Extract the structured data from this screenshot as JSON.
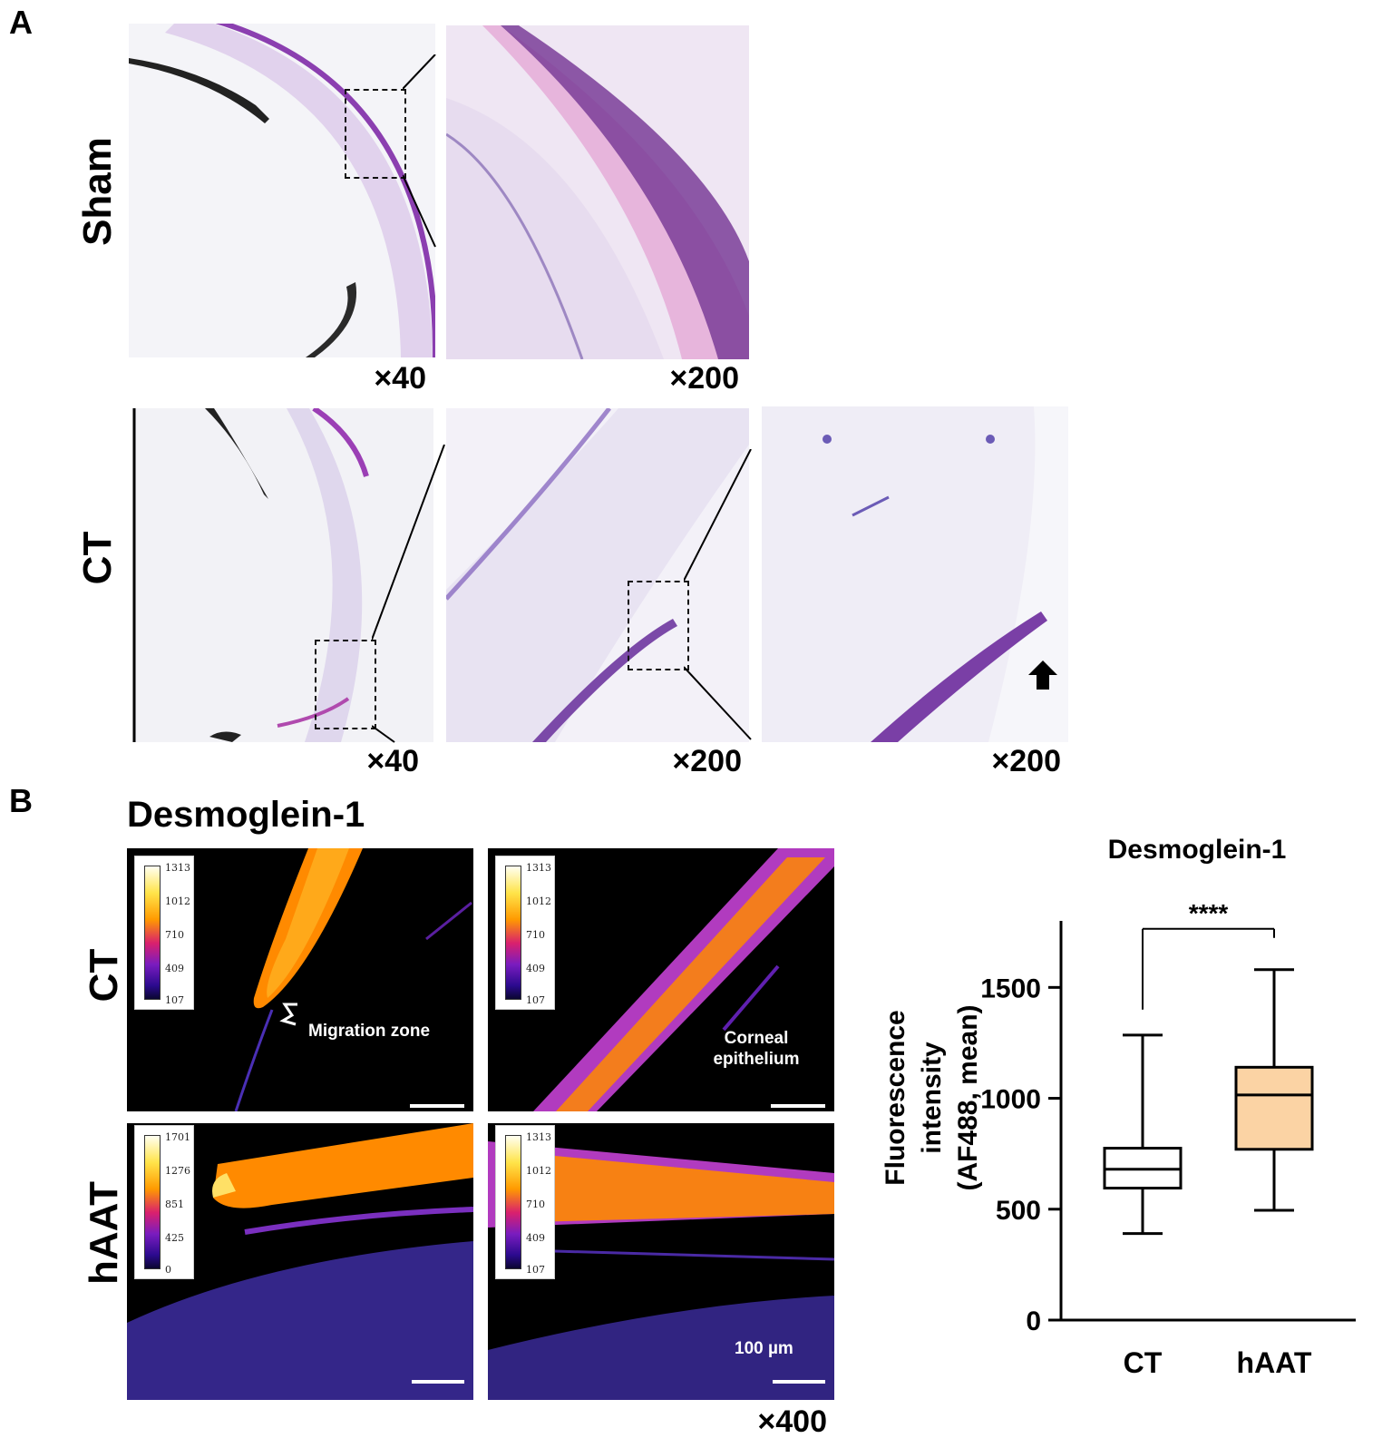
{
  "panel_a": {
    "letter": "A",
    "rows": [
      {
        "label": "Sham",
        "magnifications": [
          "×40",
          "×200"
        ]
      },
      {
        "label": "CT",
        "magnifications": [
          "×40",
          "×200",
          "×200"
        ]
      }
    ]
  },
  "panel_b": {
    "letter": "B",
    "title": "Desmoglein-1",
    "rows": [
      {
        "label": "CT",
        "colorbars": [
          [
            "1313",
            "1012",
            "710",
            "409",
            "107"
          ],
          [
            "1313",
            "1012",
            "710",
            "409",
            "107"
          ]
        ]
      },
      {
        "label": "hAAT",
        "colorbars": [
          [
            "1701",
            "1276",
            "851",
            "425",
            "0"
          ],
          [
            "1313",
            "1012",
            "710",
            "409",
            "107"
          ]
        ]
      }
    ],
    "annotations": {
      "migration_zone": "Migration zone",
      "corneal_line1": "Corneal",
      "corneal_line2": "epithelium",
      "scale": "100 µm"
    },
    "magnification": "×400"
  },
  "chart_data": {
    "type": "box",
    "title": "Desmoglein-1",
    "ylabel_line1": "Fluorescence intensity",
    "ylabel_line2": "(AF488, mean)",
    "ylim": [
      0,
      1800
    ],
    "yticks": [
      "0",
      "500",
      "1000",
      "1500"
    ],
    "categories": [
      "CT",
      "hAAT"
    ],
    "boxes": [
      {
        "category": "CT",
        "min": 390,
        "q1": 595,
        "median": 680,
        "q3": 775,
        "max": 1285,
        "fill": "#ffffff"
      },
      {
        "category": "hAAT",
        "min": 495,
        "q1": 770,
        "median": 1015,
        "q3": 1140,
        "max": 1580,
        "fill": "#fbd3a4"
      }
    ],
    "significance": "****"
  }
}
